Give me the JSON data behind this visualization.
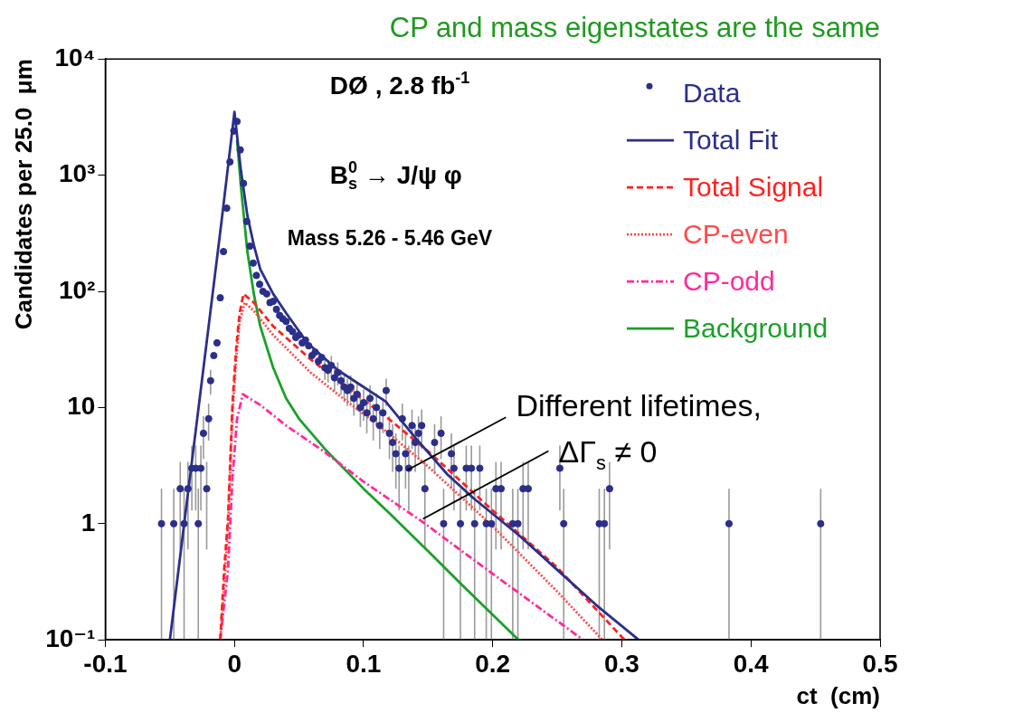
{
  "chart_data": {
    "type": "scatter",
    "title": "CP and mass eigenstates are the same",
    "xlabel": "ct  (cm)",
    "ylabel": "Candidates per 25.0  μm",
    "xlim": [
      -0.1,
      0.5
    ],
    "xticks": [
      -0.1,
      0,
      0.1,
      0.2,
      0.3,
      0.4,
      0.5
    ],
    "ylim": [
      0.1,
      10000
    ],
    "yticks": [
      {
        "value": 0.1,
        "label": "10⁻¹"
      },
      1,
      10,
      {
        "value": 100,
        "label": "10²"
      },
      {
        "value": 1000,
        "label": "10³"
      },
      {
        "value": 10000,
        "label": "10⁴"
      }
    ],
    "log": "y",
    "grid": false,
    "legend": "top right",
    "annotations": [
      "DØ , 2.8 fb$^{-1}$",
      "B$^{0}$$_{s}$ → J/ψ φ",
      "Mass 5.26 - 5.46 GeV",
      {
        "text": "Different lifetimes,",
        "x": 0.134,
        "y": 2.9
      },
      {
        "text": "ΔΓ$_{s}$ ≠ 0",
        "x": 0.146,
        "y": 1.1
      }
    ],
    "series": [
      {
        "name": "Data",
        "marker": "circle",
        "color": "#2b2f8a",
        "x": [
          -0.0565,
          -0.047,
          -0.042,
          -0.039,
          -0.036,
          -0.033,
          -0.03,
          -0.028,
          -0.026,
          -0.024,
          -0.0215,
          -0.02,
          -0.0185,
          -0.016,
          -0.0135,
          -0.011,
          -0.0085,
          -0.006,
          -0.0035,
          -0.0005,
          0.002,
          0.0045,
          0.007,
          0.0095,
          0.012,
          0.0145,
          0.017,
          0.0195,
          0.022,
          0.025,
          0.0275,
          0.03,
          0.0325,
          0.035,
          0.0375,
          0.04,
          0.0425,
          0.045,
          0.0475,
          0.05,
          0.0525,
          0.055,
          0.0575,
          0.06,
          0.0625,
          0.065,
          0.0675,
          0.07,
          0.0725,
          0.075,
          0.0775,
          0.08,
          0.0825,
          0.085,
          0.0875,
          0.09,
          0.0925,
          0.095,
          0.0975,
          0.1,
          0.1025,
          0.105,
          0.1075,
          0.11,
          0.1125,
          0.115,
          0.1175,
          0.12,
          0.1225,
          0.125,
          0.1275,
          0.13,
          0.1325,
          0.135,
          0.1375,
          0.14,
          0.1425,
          0.145,
          0.1475,
          0.155,
          0.16,
          0.162,
          0.168,
          0.17,
          0.175,
          0.1795,
          0.1835,
          0.186,
          0.19,
          0.195,
          0.199,
          0.2025,
          0.2065,
          0.2155,
          0.2195,
          0.2235,
          0.2275,
          0.252,
          0.255,
          0.2825,
          0.2865,
          0.2905,
          0.383,
          0.454
        ],
        "values": [
          1,
          1,
          2,
          1,
          2,
          3,
          3,
          1,
          3,
          6,
          2,
          8,
          17,
          28,
          36,
          88,
          220,
          520,
          1300,
          2400,
          2900,
          1650,
          850,
          400,
          245,
          175,
          137,
          115,
          100,
          95,
          80,
          82,
          70,
          62,
          58,
          55,
          48,
          45,
          40,
          42,
          36,
          38,
          34,
          28,
          30,
          25,
          27,
          22,
          21,
          23,
          18,
          20,
          17,
          15,
          14,
          15,
          12,
          13,
          10,
          11,
          9,
          12,
          8,
          10,
          7,
          9,
          14,
          6,
          5,
          4,
          3,
          8,
          4,
          3,
          7,
          5,
          6,
          7,
          2,
          5,
          6,
          1,
          4,
          3,
          1,
          3,
          3,
          1,
          3,
          1,
          1,
          2,
          2,
          1,
          1,
          2,
          2,
          3,
          1,
          1,
          1,
          2,
          1,
          1
        ],
        "errors": [
          [
            0.1,
            2
          ],
          [
            0.1,
            2
          ],
          1.4,
          [
            0.1,
            2
          ],
          1.4,
          1.7,
          1.7,
          [
            0.1,
            2
          ],
          1.7,
          2.4,
          1.4,
          2.8,
          4.1,
          null,
          null,
          null,
          null,
          null,
          null,
          null,
          null,
          null,
          null,
          null,
          null,
          null,
          null,
          null,
          null,
          null,
          null,
          null,
          null,
          null,
          null,
          null,
          null,
          null,
          null,
          null,
          null,
          null,
          null,
          null,
          null,
          null,
          null,
          4.7,
          4.6,
          4.8,
          4.2,
          4.5,
          4.1,
          3.9,
          3.7,
          3.9,
          3.5,
          3.6,
          3.2,
          3.3,
          3,
          3.5,
          2.8,
          3.2,
          2.6,
          3,
          3.7,
          2.4,
          2.2,
          2,
          1.7,
          2.8,
          2,
          1.7,
          2.6,
          2.2,
          2.4,
          2.6,
          1.4,
          2.2,
          2.4,
          [
            0.1,
            2
          ],
          2,
          1.7,
          [
            0.1,
            2
          ],
          1.7,
          1.7,
          [
            0.1,
            2
          ],
          1.7,
          [
            0.1,
            2
          ],
          [
            0.1,
            2
          ],
          1.4,
          1.4,
          [
            0.1,
            2
          ],
          [
            0.1,
            2
          ],
          1.4,
          1.4,
          1.7,
          [
            0.1,
            2
          ],
          [
            0.1,
            2
          ],
          [
            0.1,
            2
          ],
          1.4,
          [
            0.1,
            2
          ],
          [
            0.1,
            2
          ]
        ]
      },
      {
        "name": "Total Fit",
        "type": "line",
        "marker": "none",
        "line_style": "solid",
        "color": "#2b2f8a",
        "x": [
          -0.05,
          -0.04,
          -0.03,
          -0.02,
          -0.01,
          0,
          0.005,
          0.01,
          0.015,
          0.02,
          0.03,
          0.04,
          0.0565,
          0.08,
          0.1,
          0.117,
          0.14,
          0.165,
          0.185,
          0.22,
          0.25,
          0.28,
          0.313
        ],
        "values": [
          0.1,
          0.8,
          6.3,
          50,
          400,
          3500,
          1100,
          450,
          250,
          155,
          95,
          65,
          36,
          21,
          15,
          11.3,
          5.5,
          2.65,
          1.66,
          0.8,
          0.4,
          0.2,
          0.1
        ]
      },
      {
        "name": "Total Signal",
        "type": "line",
        "marker": "none",
        "line_style": "dashed",
        "color": "#ff2020",
        "x": [
          -0.011,
          -0.008,
          -0.005,
          -0.0015,
          0.0015,
          0.004,
          0.007,
          0.015,
          0.03,
          0.059,
          0.08,
          0.117,
          0.15,
          0.2,
          0.25,
          0.302
        ],
        "values": [
          0.1,
          0.4,
          1.1,
          11,
          34,
          65,
          95,
          80,
          50,
          26,
          17,
          8.4,
          4.2,
          1.3,
          0.42,
          0.1
        ]
      },
      {
        "name": "CP-even",
        "type": "line",
        "marker": "none",
        "line_style": "dotted",
        "color": "#ff4a4a",
        "x": [
          -0.011,
          -0.005,
          -0.0015,
          0.0015,
          0.004,
          0.008,
          0.015,
          0.03,
          0.059,
          0.08,
          0.117,
          0.15,
          0.2,
          0.25,
          0.285
        ],
        "values": [
          0.1,
          0.9,
          9,
          28,
          55,
          80,
          68,
          42,
          20,
          13,
          6.3,
          3.1,
          0.95,
          0.26,
          0.1
        ]
      },
      {
        "name": "CP-odd",
        "type": "line",
        "marker": "none",
        "line_style": "dashdot",
        "color": "#ff2a9a",
        "x": [
          -0.011,
          -0.005,
          -0.0015,
          0.002,
          0.0065,
          0.02,
          0.04,
          0.069,
          0.1,
          0.146,
          0.2,
          0.27
        ],
        "values": [
          0.1,
          0.4,
          2.5,
          8,
          13,
          10.5,
          7,
          4.2,
          2.3,
          1.03,
          0.37,
          0.1
        ]
      },
      {
        "name": "Background",
        "type": "line",
        "marker": "none",
        "line_style": "solid",
        "color": "#1aa02a",
        "x": [
          0.002,
          0.005,
          0.01,
          0.015,
          0.02,
          0.03,
          0.04,
          0.05,
          0.07,
          0.1,
          0.12,
          0.15,
          0.18,
          0.22
        ],
        "values": [
          2000,
          800,
          220,
          95,
          50,
          22,
          12,
          8,
          4.4,
          2,
          1.23,
          0.58,
          0.27,
          0.1
        ]
      }
    ]
  }
}
